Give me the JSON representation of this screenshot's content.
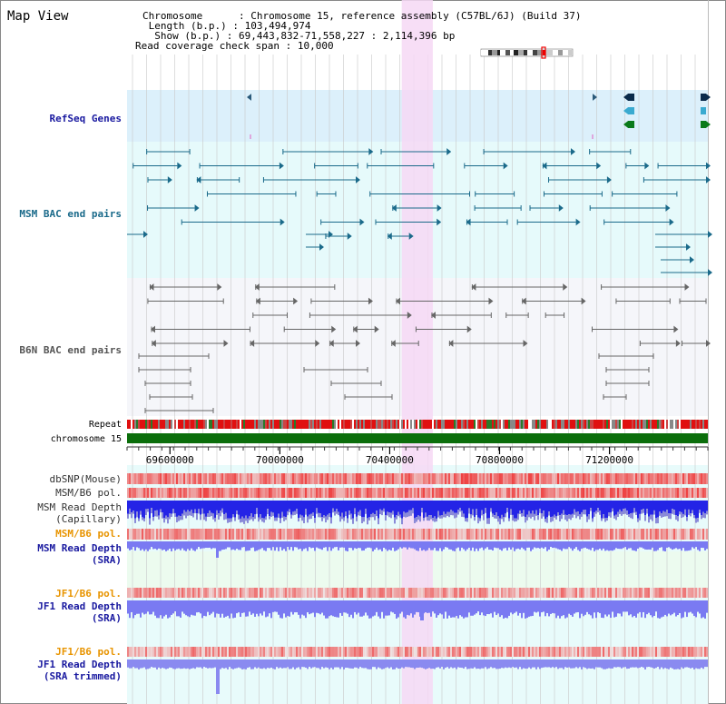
{
  "view": {
    "title": "Map View"
  },
  "header": {
    "chromosome_label": "Chromosome",
    "chromosome_value": "Chromosome 15, reference assembly (C57BL/6J) (Build 37)",
    "length_label": "Length (b.p.)",
    "length_value": "103,494,974",
    "show_label": "Show (b.p.)",
    "show_value": "69,443,832-71,558,227 : 2,114,396 bp",
    "coverage_label": "Read coverage check span",
    "coverage_value": "10,000"
  },
  "tracks": {
    "refseq": "RefSeq Genes",
    "msm_bac": "MSM BAC end pairs",
    "b6n_bac": "B6N BAC end pairs",
    "repeat": "Repeat",
    "chromosome": "chromosome 15",
    "dbsnp": "dbSNP(Mouse)",
    "msm_b6_pol_1": "MSM/B6 pol.",
    "msm_depth_cap_1": "MSM Read Depth",
    "msm_depth_cap_2": "(Capillary)",
    "msm_b6_pol_2": "MSM/B6 pol.",
    "msm_depth_sra_1": "MSM Read Depth",
    "msm_depth_sra_2": "(SRA)",
    "jf1_b6_pol_1": "JF1/B6 pol.",
    "jf1_depth_sra_1": "JF1 Read Depth",
    "jf1_depth_sra_2": "(SRA)",
    "jf1_b6_pol_2": "JF1/B6 pol.",
    "jf1_depth_trim_1": "JF1 Read Depth",
    "jf1_depth_trim_2": "(SRA trimmed)"
  },
  "axis": {
    "ticks": [
      "69600000",
      "70000000",
      "70400000",
      "70800000",
      "71200000"
    ],
    "tick_values": [
      69600000,
      70000000,
      70400000,
      70800000,
      71200000
    ],
    "view_start": 69443832,
    "view_end": 71558227
  },
  "highlight": {
    "start": 70443832,
    "end": 70557000
  },
  "colors": {
    "refseq_bg": "#dcf0fb",
    "msm_bg": "#e6fafb",
    "b6n_bg": "#f5f6fa",
    "lower_bg": "#e8fbfb",
    "highlight": "#f6d8f4",
    "grid": "#c8c8c8",
    "chrom_bar": "#0b6e0b",
    "blue_depth": "#2424e6",
    "light_blue_depth": "#7a7af2",
    "pol_red": "#ee3b3b",
    "navy": "#1a1aa0",
    "teal": "#1a6a8a",
    "orange": "#e89400"
  }
}
